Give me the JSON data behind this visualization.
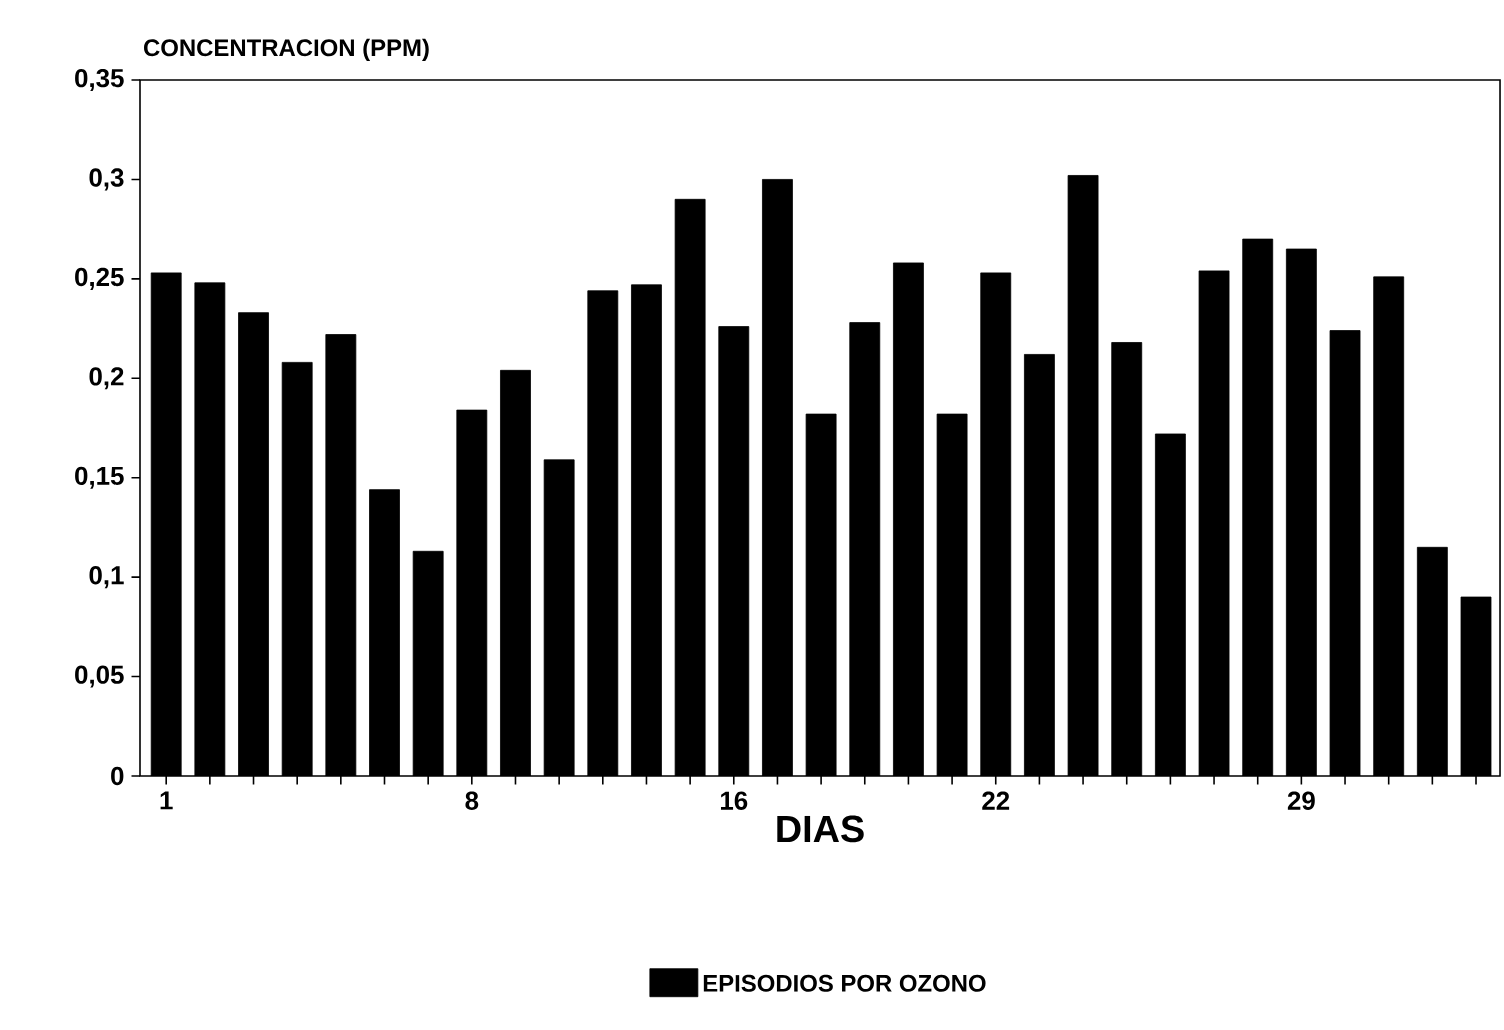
{
  "chart_data": {
    "type": "bar",
    "ylabel": "CONCENTRACION (PPM)",
    "xlabel": "DIAS",
    "categories": [
      "1",
      null,
      null,
      null,
      null,
      null,
      null,
      "8",
      null,
      null,
      null,
      null,
      null,
      "16",
      null,
      null,
      null,
      null,
      null,
      "22",
      null,
      null,
      null,
      null,
      null,
      null,
      "29",
      null,
      null,
      null,
      null
    ],
    "series": [
      {
        "name": "EPISODIOS POR OZONO",
        "color": "#000000",
        "values": [
          0.253,
          0.248,
          0.233,
          0.208,
          0.222,
          0.144,
          0.113,
          0.184,
          0.204,
          0.159,
          0.244,
          0.247,
          0.29,
          0.226,
          0.3,
          0.182,
          0.228,
          0.258,
          0.182,
          0.253,
          0.212,
          0.302,
          0.218,
          0.172,
          0.254,
          0.27,
          0.265,
          0.224,
          0.251,
          0.115,
          0.09
        ]
      }
    ],
    "ylim": [
      0,
      0.35
    ],
    "yticks": [
      0,
      {
        "value": 0.05,
        "label": "0,05"
      },
      {
        "value": 0.1,
        "label": "0,1"
      },
      {
        "value": 0.15,
        "label": "0,15"
      },
      {
        "value": 0.2,
        "label": "0,2"
      },
      {
        "value": 0.25,
        "label": "0,25"
      },
      {
        "value": 0.3,
        "label": "0,3"
      },
      {
        "value": 0.35,
        "label": "0,35"
      }
    ],
    "grid": false,
    "legend": "bottom"
  }
}
